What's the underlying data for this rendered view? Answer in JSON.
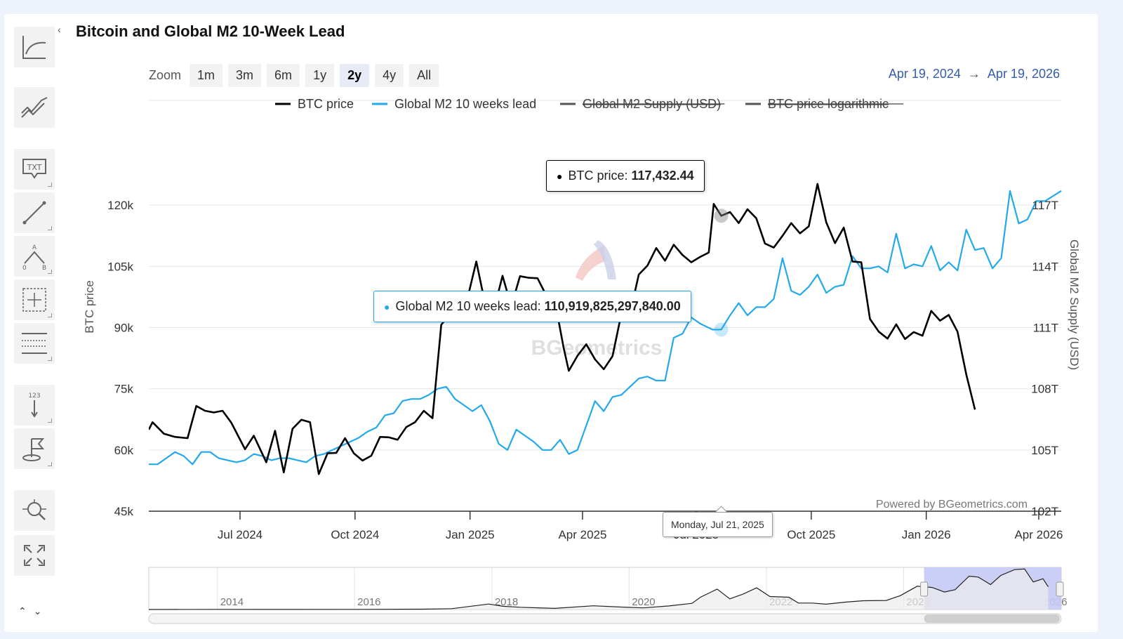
{
  "title": "Bitcoin and Global M2 10-Week Lead",
  "zoom": {
    "label": "Zoom",
    "buttons": [
      "1m",
      "3m",
      "6m",
      "1y",
      "2y",
      "4y",
      "All"
    ],
    "active": "2y"
  },
  "range": {
    "from": "Apr 19, 2024",
    "arrow": "→",
    "to": "Apr 19, 2026"
  },
  "legend": [
    {
      "name": "BTC price",
      "color": "#000000",
      "enabled": true
    },
    {
      "name": "Global M2 10 weeks lead",
      "color": "#23a9ec",
      "enabled": true
    },
    {
      "name": "Global M2 Supply (USD)",
      "color": "#555555",
      "enabled": false
    },
    {
      "name": "BTC price logarithmic",
      "color": "#555555",
      "enabled": false
    }
  ],
  "tooltips": {
    "btc": {
      "label": "BTC price:",
      "value": "117,432.44"
    },
    "m2": {
      "label": "Global M2 10 weeks lead:",
      "value": "110,919,825,297,840.00"
    },
    "x": "Monday, Jul 21, 2025"
  },
  "watermark": "BGeometrics",
  "credit": "Powered by BGeometrics.com",
  "toolbar": {
    "icons": [
      "indicators-icon",
      "compare-icon",
      "text-annotation-icon",
      "line-tool-icon",
      "abc-pattern-icon",
      "measure-icon",
      "fibonacci-icon",
      "vertical-counter-icon",
      "flag-icon",
      "zoom-pan-icon",
      "fullscreen-icon"
    ]
  },
  "chart_data": {
    "type": "line",
    "ylabel_left": "BTC price",
    "ylabel_right": "Global M2 Supply (USD)",
    "y_left_ticks": [
      45,
      60,
      75,
      90,
      105,
      120
    ],
    "y_left_tick_labels": [
      "45k",
      "60k",
      "75k",
      "90k",
      "105k",
      "120k"
    ],
    "y_left_range": [
      45,
      135
    ],
    "y_right_ticks": [
      102,
      105,
      108,
      111,
      114,
      117
    ],
    "y_right_tick_labels": [
      "102T",
      "105T",
      "108T",
      "111T",
      "114T",
      "117T"
    ],
    "y_right_range": [
      102,
      120
    ],
    "x_range": [
      "2024-04-19",
      "2026-04-19"
    ],
    "x_ticks": [
      {
        "date": "2024-07-01",
        "label": "Jul 2024"
      },
      {
        "date": "2024-10-01",
        "label": "Oct 2024"
      },
      {
        "date": "2025-01-01",
        "label": "Jan 2025"
      },
      {
        "date": "2025-04-01",
        "label": "Apr 2025"
      },
      {
        "date": "2025-07-01",
        "label": "Jul 2025"
      },
      {
        "date": "2025-10-01",
        "label": "Oct 2025"
      },
      {
        "date": "2026-01-01",
        "label": "Jan 2026"
      },
      {
        "date": "2026-04-01",
        "label": "Apr 2026"
      }
    ],
    "series": [
      {
        "name": "BTC price",
        "axis": "left",
        "color": "#000000",
        "points": [
          [
            "2024-04-19",
            65
          ],
          [
            "2024-04-22",
            66.8
          ],
          [
            "2024-05-01",
            64
          ],
          [
            "2024-05-10",
            63.2
          ],
          [
            "2024-05-20",
            62.9
          ],
          [
            "2024-05-27",
            70.8
          ],
          [
            "2024-06-03",
            69.6
          ],
          [
            "2024-06-10",
            69.2
          ],
          [
            "2024-06-17",
            69.6
          ],
          [
            "2024-06-24",
            66.7
          ],
          [
            "2024-07-05",
            60.2
          ],
          [
            "2024-07-12",
            63.5
          ],
          [
            "2024-07-22",
            57
          ],
          [
            "2024-07-29",
            64.7
          ],
          [
            "2024-08-05",
            54.5
          ],
          [
            "2024-08-12",
            65.2
          ],
          [
            "2024-08-19",
            67.4
          ],
          [
            "2024-08-26",
            66.8
          ],
          [
            "2024-09-02",
            54.1
          ],
          [
            "2024-09-09",
            59.2
          ],
          [
            "2024-09-16",
            59.3
          ],
          [
            "2024-09-23",
            62.9
          ],
          [
            "2024-09-30",
            59.2
          ],
          [
            "2024-10-07",
            57.4
          ],
          [
            "2024-10-14",
            58.6
          ],
          [
            "2024-10-21",
            63.2
          ],
          [
            "2024-10-28",
            63.1
          ],
          [
            "2024-11-04",
            62.5
          ],
          [
            "2024-11-11",
            65.6
          ],
          [
            "2024-11-18",
            66.8
          ],
          [
            "2024-11-25",
            69.6
          ],
          [
            "2024-12-02",
            67.8
          ],
          [
            "2024-12-09",
            90.7
          ],
          [
            "2024-12-16",
            93.3
          ],
          [
            "2024-12-23",
            95.7
          ],
          [
            "2024-12-30",
            97.2
          ],
          [
            "2025-01-06",
            106.2
          ],
          [
            "2025-01-13",
            96
          ],
          [
            "2025-01-20",
            94.2
          ],
          [
            "2025-01-27",
            102.7
          ],
          [
            "2025-02-03",
            95.2
          ],
          [
            "2025-02-10",
            102.6
          ],
          [
            "2025-02-17",
            102.2
          ],
          [
            "2025-02-24",
            102.1
          ],
          [
            "2025-03-03",
            97.9
          ],
          [
            "2025-03-10",
            96.3
          ],
          [
            "2025-03-17",
            84.9
          ],
          [
            "2025-03-21",
            79.4
          ],
          [
            "2025-03-28",
            83.1
          ],
          [
            "2025-04-04",
            85.9
          ],
          [
            "2025-04-11",
            82.2
          ],
          [
            "2025-04-18",
            79.8
          ],
          [
            "2025-04-25",
            83
          ],
          [
            "2025-05-02",
            93.3
          ],
          [
            "2025-05-09",
            93.4
          ],
          [
            "2025-05-16",
            103
          ],
          [
            "2025-05-23",
            105.2
          ],
          [
            "2025-05-30",
            109.5
          ],
          [
            "2025-06-06",
            106.4
          ],
          [
            "2025-06-13",
            110.3
          ],
          [
            "2025-06-20",
            107.8
          ],
          [
            "2025-06-27",
            106
          ],
          [
            "2025-07-04",
            107.3
          ],
          [
            "2025-07-11",
            108.4
          ],
          [
            "2025-07-15",
            120.3
          ],
          [
            "2025-07-21",
            117.4
          ],
          [
            "2025-07-28",
            118.3
          ],
          [
            "2025-08-04",
            115.6
          ],
          [
            "2025-08-11",
            119
          ],
          [
            "2025-08-18",
            116.8
          ],
          [
            "2025-08-25",
            110.6
          ],
          [
            "2025-09-01",
            109.6
          ],
          [
            "2025-09-08",
            112.5
          ],
          [
            "2025-09-15",
            115.6
          ],
          [
            "2025-09-22",
            113.1
          ],
          [
            "2025-09-29",
            114.8
          ],
          [
            "2025-10-06",
            125.2
          ],
          [
            "2025-10-13",
            115.8
          ],
          [
            "2025-10-20",
            110.7
          ],
          [
            "2025-10-27",
            114.5
          ],
          [
            "2025-11-03",
            106.2
          ],
          [
            "2025-11-10",
            106
          ],
          [
            "2025-11-17",
            92.1
          ],
          [
            "2025-11-24",
            89
          ],
          [
            "2025-12-01",
            87.3
          ],
          [
            "2025-12-08",
            90.8
          ],
          [
            "2025-12-15",
            87.2
          ],
          [
            "2025-12-22",
            88.9
          ],
          [
            "2025-12-29",
            88
          ],
          [
            "2026-01-05",
            94.1
          ],
          [
            "2026-01-12",
            91.7
          ],
          [
            "2026-01-19",
            93.1
          ],
          [
            "2026-01-26",
            89
          ],
          [
            "2026-02-02",
            78.5
          ],
          [
            "2026-02-09",
            69.9
          ]
        ]
      },
      {
        "name": "Global M2 10 weeks lead",
        "axis": "right",
        "color": "#23a9ec",
        "points": [
          [
            "2024-04-19",
            104.3
          ],
          [
            "2024-04-26",
            104.3
          ],
          [
            "2024-05-03",
            104.6
          ],
          [
            "2024-05-10",
            104.9
          ],
          [
            "2024-05-17",
            104.7
          ],
          [
            "2024-05-24",
            104.3
          ],
          [
            "2024-05-31",
            104.9
          ],
          [
            "2024-06-07",
            104.9
          ],
          [
            "2024-06-14",
            104.6
          ],
          [
            "2024-06-21",
            104.5
          ],
          [
            "2024-06-28",
            104.4
          ],
          [
            "2024-07-05",
            104.5
          ],
          [
            "2024-07-12",
            104.8
          ],
          [
            "2024-07-19",
            104.7
          ],
          [
            "2024-07-26",
            104.5
          ],
          [
            "2024-08-02",
            104.6
          ],
          [
            "2024-08-09",
            104.6
          ],
          [
            "2024-08-16",
            104.5
          ],
          [
            "2024-08-23",
            104.4
          ],
          [
            "2024-08-30",
            104.7
          ],
          [
            "2024-09-06",
            104.8
          ],
          [
            "2024-09-13",
            105
          ],
          [
            "2024-09-20",
            105.2
          ],
          [
            "2024-09-27",
            105.4
          ],
          [
            "2024-10-04",
            105.6
          ],
          [
            "2024-10-11",
            105.9
          ],
          [
            "2024-10-18",
            106.1
          ],
          [
            "2024-10-25",
            106.7
          ],
          [
            "2024-11-01",
            106.8
          ],
          [
            "2024-11-08",
            107.4
          ],
          [
            "2024-11-15",
            107.5
          ],
          [
            "2024-11-22",
            107.5
          ],
          [
            "2024-11-29",
            107.7
          ],
          [
            "2024-12-06",
            108
          ],
          [
            "2024-12-13",
            108.1
          ],
          [
            "2024-12-20",
            107.5
          ],
          [
            "2024-12-27",
            107.2
          ],
          [
            "2025-01-03",
            106.9
          ],
          [
            "2025-01-10",
            107.2
          ],
          [
            "2025-01-17",
            106.4
          ],
          [
            "2025-01-24",
            105.3
          ],
          [
            "2025-01-31",
            105
          ],
          [
            "2025-02-07",
            106
          ],
          [
            "2025-02-14",
            105.7
          ],
          [
            "2025-02-21",
            105.4
          ],
          [
            "2025-02-28",
            105
          ],
          [
            "2025-03-07",
            105
          ],
          [
            "2025-03-14",
            105.5
          ],
          [
            "2025-03-21",
            104.8
          ],
          [
            "2025-03-28",
            105
          ],
          [
            "2025-04-04",
            106.2
          ],
          [
            "2025-04-11",
            107.4
          ],
          [
            "2025-04-18",
            106.9
          ],
          [
            "2025-04-25",
            107.6
          ],
          [
            "2025-05-02",
            107.7
          ],
          [
            "2025-05-09",
            108.1
          ],
          [
            "2025-05-16",
            108.5
          ],
          [
            "2025-05-23",
            108.6
          ],
          [
            "2025-05-30",
            108.4
          ],
          [
            "2025-06-06",
            108.4
          ],
          [
            "2025-06-13",
            110.5
          ],
          [
            "2025-06-20",
            110.7
          ],
          [
            "2025-06-27",
            111.5
          ],
          [
            "2025-07-04",
            111.2
          ],
          [
            "2025-07-14",
            110.9
          ],
          [
            "2025-07-21",
            110.9
          ],
          [
            "2025-07-28",
            111.6
          ],
          [
            "2025-08-04",
            112.2
          ],
          [
            "2025-08-11",
            111.6
          ],
          [
            "2025-08-18",
            112
          ],
          [
            "2025-08-25",
            112
          ],
          [
            "2025-09-01",
            112.4
          ],
          [
            "2025-09-08",
            114.4
          ],
          [
            "2025-09-15",
            112.8
          ],
          [
            "2025-09-22",
            112.6
          ],
          [
            "2025-09-29",
            113
          ],
          [
            "2025-10-06",
            113.6
          ],
          [
            "2025-10-13",
            112.7
          ],
          [
            "2025-10-20",
            113
          ],
          [
            "2025-10-27",
            113.1
          ],
          [
            "2025-11-03",
            114.5
          ],
          [
            "2025-11-10",
            113.9
          ],
          [
            "2025-11-17",
            113.9
          ],
          [
            "2025-11-24",
            114
          ],
          [
            "2025-12-01",
            113.7
          ],
          [
            "2025-12-08",
            115.6
          ],
          [
            "2025-12-15",
            113.9
          ],
          [
            "2025-12-22",
            114.1
          ],
          [
            "2025-12-29",
            114
          ],
          [
            "2026-01-05",
            115
          ],
          [
            "2026-01-12",
            113.8
          ],
          [
            "2026-01-19",
            114.2
          ],
          [
            "2026-01-26",
            113.8
          ],
          [
            "2026-02-02",
            115.8
          ],
          [
            "2026-02-09",
            114.8
          ],
          [
            "2026-02-16",
            114.9
          ],
          [
            "2026-02-23",
            113.9
          ],
          [
            "2026-03-02",
            114.4
          ],
          [
            "2026-03-09",
            117.7
          ],
          [
            "2026-03-16",
            116.1
          ],
          [
            "2026-03-23",
            116.3
          ],
          [
            "2026-03-30",
            117.2
          ],
          [
            "2026-04-06",
            117.2
          ],
          [
            "2026-04-19",
            117.7
          ]
        ]
      }
    ],
    "navigator": {
      "x_range": [
        "2013-01-01",
        "2026-04-19"
      ],
      "x_labels": [
        "2014",
        "2016",
        "2018",
        "2020",
        "2022",
        "2024",
        "2026"
      ],
      "y_range": [
        0,
        130
      ],
      "points": [
        [
          "2013-01-01",
          0.1
        ],
        [
          "2014-01-01",
          0.5
        ],
        [
          "2015-01-01",
          0.3
        ],
        [
          "2016-01-01",
          0.4
        ],
        [
          "2017-01-01",
          1
        ],
        [
          "2017-06-01",
          2.5
        ],
        [
          "2017-12-15",
          17
        ],
        [
          "2018-03-01",
          10
        ],
        [
          "2018-06-01",
          7
        ],
        [
          "2018-12-01",
          3.5
        ],
        [
          "2019-06-25",
          11.5
        ],
        [
          "2019-12-01",
          7.3
        ],
        [
          "2020-03-15",
          5
        ],
        [
          "2020-08-01",
          11
        ],
        [
          "2020-12-01",
          19
        ],
        [
          "2021-01-15",
          38
        ],
        [
          "2021-04-14",
          63
        ],
        [
          "2021-06-20",
          33
        ],
        [
          "2021-09-01",
          48
        ],
        [
          "2021-11-10",
          67
        ],
        [
          "2022-01-20",
          40
        ],
        [
          "2022-05-01",
          38
        ],
        [
          "2022-06-20",
          20
        ],
        [
          "2022-09-01",
          20
        ],
        [
          "2022-11-15",
          16.5
        ],
        [
          "2023-03-01",
          23
        ],
        [
          "2023-06-01",
          27
        ],
        [
          "2023-10-01",
          28
        ],
        [
          "2023-12-15",
          43
        ],
        [
          "2024-03-14",
          72
        ],
        [
          "2024-06-01",
          68
        ],
        [
          "2024-08-05",
          54
        ],
        [
          "2024-10-01",
          61
        ],
        [
          "2024-12-15",
          103
        ],
        [
          "2025-02-01",
          100
        ],
        [
          "2025-04-08",
          77
        ],
        [
          "2025-06-01",
          105
        ],
        [
          "2025-08-14",
          123
        ],
        [
          "2025-10-06",
          125
        ],
        [
          "2025-11-21",
          85
        ],
        [
          "2026-01-12",
          95
        ],
        [
          "2026-02-09",
          70
        ]
      ]
    }
  }
}
